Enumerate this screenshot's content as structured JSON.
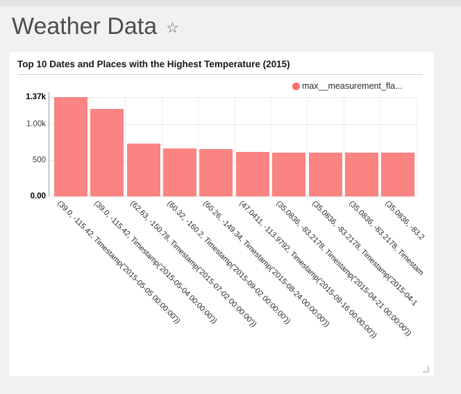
{
  "header": {
    "title": "Weather Data",
    "star_icon": "☆"
  },
  "chart_data": {
    "type": "bar",
    "title": "Top 10 Dates and Places with the Highest Temperature (2015)",
    "legend": [
      {
        "label": "max__measurement_fla...",
        "color": "#fb6e6e"
      }
    ],
    "legend_position": "top-right",
    "grid": true,
    "bar_color": "#f98481",
    "x_label_rotation_deg": 45,
    "ylim": [
      0,
      1370
    ],
    "y_ticks": [
      {
        "label": "0.00",
        "value": 0,
        "bold": true
      },
      {
        "label": "500",
        "value": 500,
        "bold": false
      },
      {
        "label": "1.00k",
        "value": 1000,
        "bold": false
      },
      {
        "label": "1.37k",
        "value": 1370,
        "bold": true
      }
    ],
    "categories": [
      "(39.0, -115.42, Timestamp('2015-05-05 00:00:00'))",
      "(39.0, -115.42, Timestamp('2015-05-04 00:00:00'))",
      "(62.63, -150.78, Timestamp('2015-07-02 00:00:00'))",
      "(60.32, -160.2, Timestamp('2015-09-02 00:00:00'))",
      "(60.26, -149.34, Timestamp('2015-08-24 00:00:00'))",
      "(47.0411, -113.9792, Timestamp('2015-09-16 00:00:00'))",
      "(35.0836, -83.2178, Timestamp('2015-04-21 00:00:00'))",
      "(35.0836, -83.2178, Timestamp('2015-04-1",
      "(35.0836, -83.2178, Timestam",
      "(35.0836, -83.2"
    ],
    "values": [
      1370,
      1205,
      730,
      660,
      650,
      610,
      608,
      606,
      605,
      604
    ]
  }
}
